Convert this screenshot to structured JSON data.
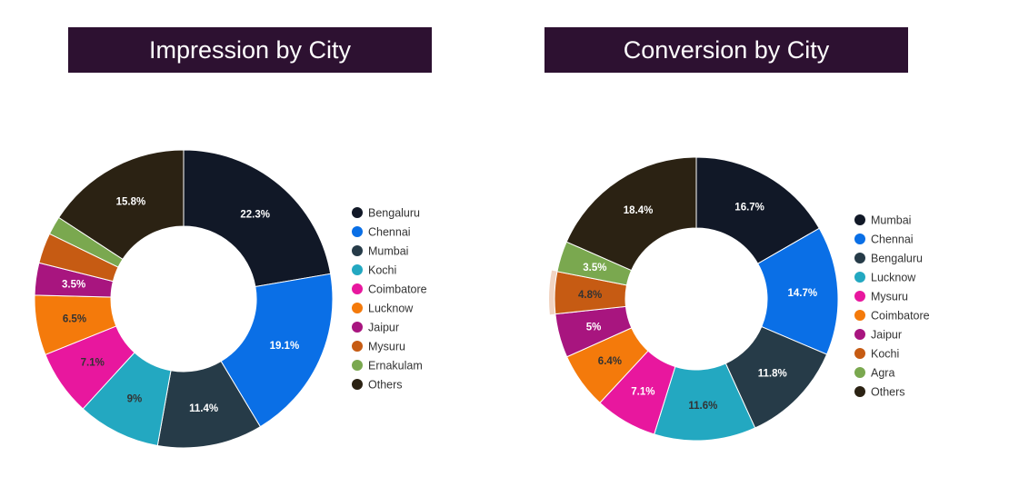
{
  "colors": {
    "title_bg": "#2d1131",
    "label_light": "#ffffff",
    "label_dark": "#333333"
  },
  "chart_data": [
    {
      "type": "pie",
      "donut": true,
      "title": "Impression by City",
      "legend_position": "right",
      "slices": [
        {
          "label": "Bengaluru",
          "value": 22.3,
          "display": "22.3%",
          "color": "#111827"
        },
        {
          "label": "Chennai",
          "value": 19.1,
          "display": "19.1%",
          "color": "#0a6fe6"
        },
        {
          "label": "Mumbai",
          "value": 11.4,
          "display": "11.4%",
          "color": "#263b48"
        },
        {
          "label": "Kochi",
          "value": 9.0,
          "display": "9%",
          "color": "#23a8c1"
        },
        {
          "label": "Coimbatore",
          "value": 7.1,
          "display": "7.1%",
          "color": "#e8179e"
        },
        {
          "label": "Lucknow",
          "value": 6.5,
          "display": "6.5%",
          "color": "#f47a0b"
        },
        {
          "label": "Jaipur",
          "value": 3.5,
          "display": "3.5%",
          "color": "#a8157f"
        },
        {
          "label": "Mysuru",
          "value": 3.3,
          "display": "",
          "color": "#c65b13"
        },
        {
          "label": "Ernakulam",
          "value": 2.0,
          "display": "",
          "color": "#7aa84f"
        },
        {
          "label": "Others",
          "value": 15.8,
          "display": "15.8%",
          "color": "#2b2213"
        }
      ]
    },
    {
      "type": "pie",
      "donut": true,
      "title": "Conversion by City",
      "legend_position": "right",
      "highlighted": "Kochi",
      "slices": [
        {
          "label": "Mumbai",
          "value": 16.7,
          "display": "16.7%",
          "color": "#111827"
        },
        {
          "label": "Chennai",
          "value": 14.7,
          "display": "14.7%",
          "color": "#0a6fe6"
        },
        {
          "label": "Bengaluru",
          "value": 11.8,
          "display": "11.8%",
          "color": "#263b48"
        },
        {
          "label": "Lucknow",
          "value": 11.6,
          "display": "11.6%",
          "color": "#23a8c1"
        },
        {
          "label": "Mysuru",
          "value": 7.1,
          "display": "7.1%",
          "color": "#e8179e"
        },
        {
          "label": "Coimbatore",
          "value": 6.4,
          "display": "6.4%",
          "color": "#f47a0b"
        },
        {
          "label": "Jaipur",
          "value": 5.0,
          "display": "5%",
          "color": "#a8157f"
        },
        {
          "label": "Kochi",
          "value": 4.8,
          "display": "4.8%",
          "color": "#c65b13"
        },
        {
          "label": "Agra",
          "value": 3.5,
          "display": "3.5%",
          "color": "#7aa84f"
        },
        {
          "label": "Others",
          "value": 18.4,
          "display": "18.4%",
          "color": "#2b2213"
        }
      ]
    }
  ]
}
